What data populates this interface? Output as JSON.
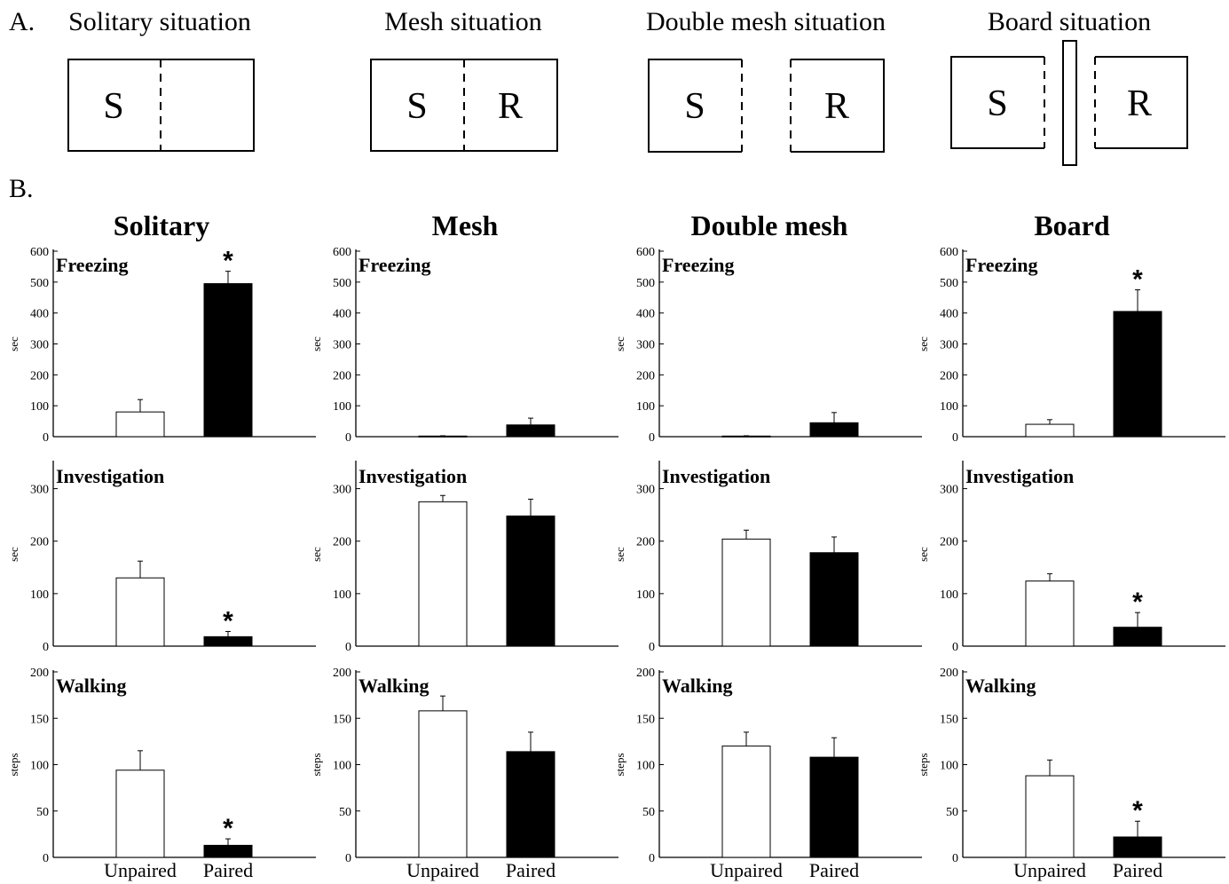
{
  "panel_a": {
    "letter": "A.",
    "situations": [
      {
        "title": "Solitary situation",
        "left_label": "S",
        "right_label": ""
      },
      {
        "title": "Mesh situation",
        "left_label": "S",
        "right_label": "R"
      },
      {
        "title": "Double mesh situation",
        "left_label": "S",
        "right_label": "R"
      },
      {
        "title": "Board situation",
        "left_label": "S",
        "right_label": "R"
      }
    ]
  },
  "panel_b": {
    "letter": "B.",
    "columns": [
      "Solitary",
      "Mesh",
      "Double mesh",
      "Board"
    ],
    "row_labels": [
      "Freezing",
      "Investigation",
      "Walking"
    ],
    "units": [
      "sec",
      "sec",
      "steps"
    ],
    "x_categories": [
      "Unpaired",
      "Paired"
    ],
    "significance_marker": "*",
    "colors": {
      "unpaired_fill": "#ffffff",
      "paired_fill": "#000000",
      "axis": "#000000"
    }
  },
  "chart_data": [
    {
      "type": "bar",
      "title": "Solitary",
      "subplot": "Freezing",
      "ylabel": "sec",
      "ylim": [
        0,
        600
      ],
      "yticks": [
        0,
        100,
        200,
        300,
        400,
        500,
        600
      ],
      "categories": [
        "Unpaired",
        "Paired"
      ],
      "values": [
        80,
        495
      ],
      "errors": [
        40,
        40
      ],
      "significant": [
        false,
        true
      ]
    },
    {
      "type": "bar",
      "title": "Mesh",
      "subplot": "Freezing",
      "ylabel": "sec",
      "ylim": [
        0,
        600
      ],
      "yticks": [
        0,
        100,
        200,
        300,
        400,
        500,
        600
      ],
      "categories": [
        "Unpaired",
        "Paired"
      ],
      "values": [
        2,
        38
      ],
      "errors": [
        1,
        22
      ],
      "significant": [
        false,
        false
      ]
    },
    {
      "type": "bar",
      "title": "Double mesh",
      "subplot": "Freezing",
      "ylabel": "sec",
      "ylim": [
        0,
        600
      ],
      "yticks": [
        0,
        100,
        200,
        300,
        400,
        500,
        600
      ],
      "categories": [
        "Unpaired",
        "Paired"
      ],
      "values": [
        2,
        45
      ],
      "errors": [
        1,
        33
      ],
      "significant": [
        false,
        false
      ]
    },
    {
      "type": "bar",
      "title": "Board",
      "subplot": "Freezing",
      "ylabel": "sec",
      "ylim": [
        0,
        600
      ],
      "yticks": [
        0,
        100,
        200,
        300,
        400,
        500,
        600
      ],
      "categories": [
        "Unpaired",
        "Paired"
      ],
      "values": [
        40,
        405
      ],
      "errors": [
        15,
        70
      ],
      "significant": [
        false,
        true
      ]
    },
    {
      "type": "bar",
      "subplot": "Investigation",
      "ylabel": "sec",
      "ylim": [
        0,
        350
      ],
      "yticks": [
        0,
        100,
        200,
        300
      ],
      "categories": [
        "Unpaired",
        "Paired"
      ],
      "values": [
        130,
        18
      ],
      "errors": [
        32,
        10
      ],
      "significant": [
        false,
        true
      ]
    },
    {
      "type": "bar",
      "subplot": "Investigation",
      "ylabel": "sec",
      "ylim": [
        0,
        350
      ],
      "yticks": [
        0,
        100,
        200,
        300
      ],
      "categories": [
        "Unpaired",
        "Paired"
      ],
      "values": [
        275,
        248
      ],
      "errors": [
        12,
        32
      ],
      "significant": [
        false,
        false
      ]
    },
    {
      "type": "bar",
      "subplot": "Investigation",
      "ylabel": "sec",
      "ylim": [
        0,
        350
      ],
      "yticks": [
        0,
        100,
        200,
        300
      ],
      "categories": [
        "Unpaired",
        "Paired"
      ],
      "values": [
        204,
        178
      ],
      "errors": [
        17,
        30
      ],
      "significant": [
        false,
        false
      ]
    },
    {
      "type": "bar",
      "subplot": "Investigation",
      "ylabel": "sec",
      "ylim": [
        0,
        350
      ],
      "yticks": [
        0,
        100,
        200,
        300
      ],
      "categories": [
        "Unpaired",
        "Paired"
      ],
      "values": [
        124,
        36
      ],
      "errors": [
        14,
        28
      ],
      "significant": [
        false,
        true
      ]
    },
    {
      "type": "bar",
      "subplot": "Walking",
      "ylabel": "steps",
      "ylim": [
        0,
        200
      ],
      "yticks": [
        0,
        50,
        100,
        150,
        200
      ],
      "categories": [
        "Unpaired",
        "Paired"
      ],
      "values": [
        94,
        13
      ],
      "errors": [
        21,
        7
      ],
      "significant": [
        false,
        true
      ]
    },
    {
      "type": "bar",
      "subplot": "Walking",
      "ylabel": "steps",
      "ylim": [
        0,
        200
      ],
      "yticks": [
        0,
        50,
        100,
        150,
        200
      ],
      "categories": [
        "Unpaired",
        "Paired"
      ],
      "values": [
        158,
        114
      ],
      "errors": [
        16,
        21
      ],
      "significant": [
        false,
        false
      ]
    },
    {
      "type": "bar",
      "subplot": "Walking",
      "ylabel": "steps",
      "ylim": [
        0,
        200
      ],
      "yticks": [
        0,
        50,
        100,
        150,
        200
      ],
      "categories": [
        "Unpaired",
        "Paired"
      ],
      "values": [
        120,
        108
      ],
      "errors": [
        15,
        21
      ],
      "significant": [
        false,
        false
      ]
    },
    {
      "type": "bar",
      "subplot": "Walking",
      "ylabel": "steps",
      "ylim": [
        0,
        200
      ],
      "yticks": [
        0,
        50,
        100,
        150,
        200
      ],
      "categories": [
        "Unpaired",
        "Paired"
      ],
      "values": [
        88,
        22
      ],
      "errors": [
        17,
        17
      ],
      "significant": [
        false,
        true
      ]
    }
  ]
}
